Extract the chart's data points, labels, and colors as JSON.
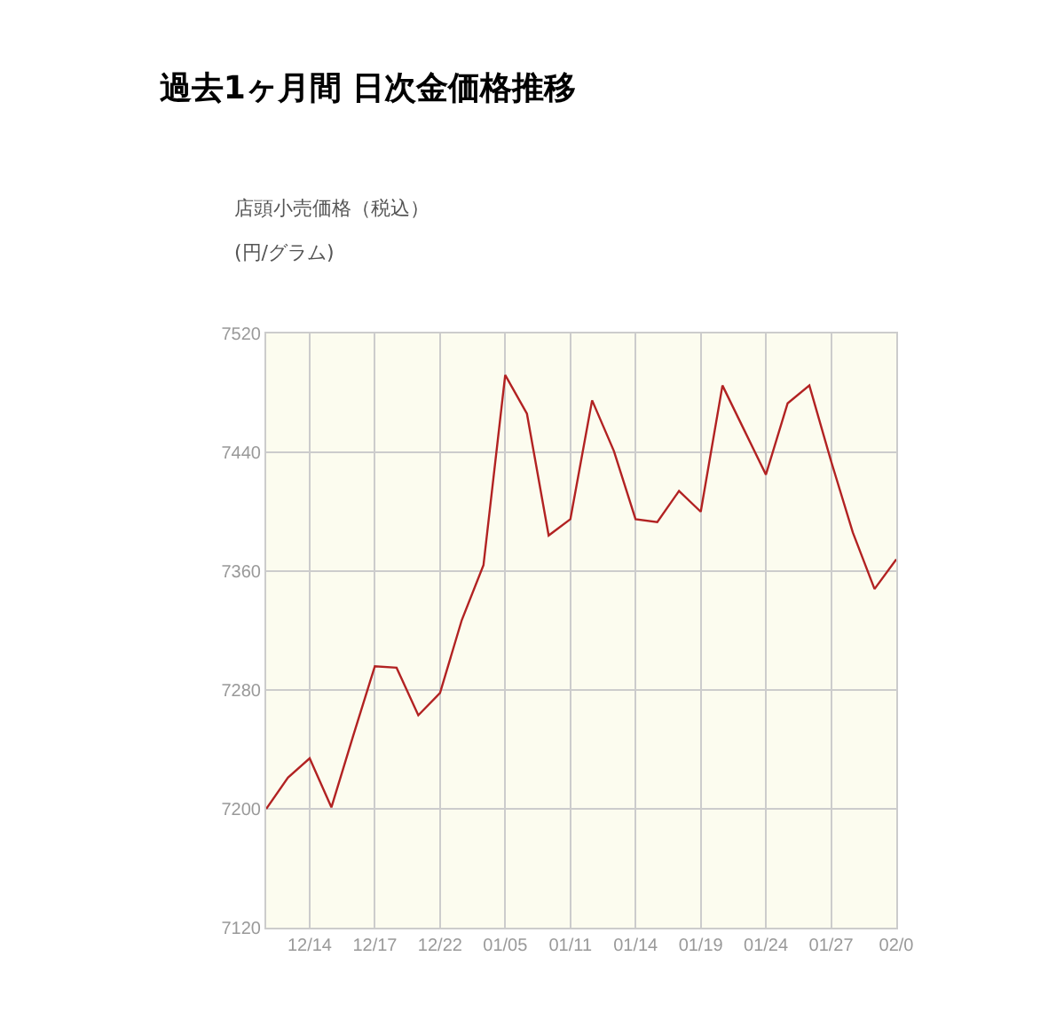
{
  "chart_data": {
    "type": "line",
    "title": "過去1ヶ月間 日次金価格推移",
    "subtitle": "店頭小売価格（税込）",
    "ylabel": "(円/グラム)",
    "categories": [
      null,
      null,
      "12/14",
      null,
      null,
      "12/17",
      null,
      null,
      "12/22",
      null,
      null,
      "01/05",
      null,
      null,
      "01/11",
      null,
      null,
      "01/14",
      null,
      null,
      "01/19",
      null,
      null,
      "01/24",
      null,
      null,
      "01/27",
      null,
      null,
      "02/0"
    ],
    "series": [
      {
        "color": "#b22222",
        "values": [
          7200,
          7221,
          7234,
          7201,
          7249,
          7296,
          7295,
          7263,
          7278,
          7327,
          7364,
          7492,
          7466,
          7384,
          7395,
          7475,
          7441,
          7395,
          7393,
          7414,
          7400,
          7485,
          7455,
          7425,
          7473,
          7485,
          7434,
          7386,
          7348,
          7368
        ]
      }
    ],
    "ylim": [
      7120,
      7520
    ],
    "yticks": [
      7120,
      7200,
      7280,
      7360,
      7440,
      7520
    ],
    "grid": true,
    "marker": "none",
    "line_style": "solid"
  }
}
